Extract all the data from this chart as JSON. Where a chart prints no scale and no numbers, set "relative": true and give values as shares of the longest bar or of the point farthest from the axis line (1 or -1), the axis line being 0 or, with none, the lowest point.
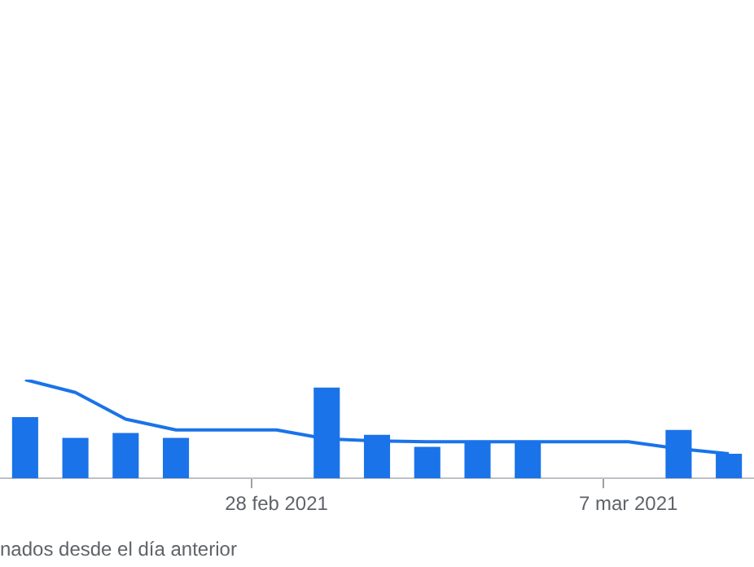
{
  "chart_data": {
    "type": "bar",
    "relative": true,
    "grid": false,
    "legend": false,
    "marker": "none",
    "categories": [
      null,
      null,
      null,
      null,
      null,
      "28 feb 2021",
      null,
      null,
      null,
      null,
      null,
      null,
      "7 mar 2021",
      null,
      null
    ],
    "series": [
      {
        "color": "#1a73e8",
        "values": [
          0.62,
          0.41,
          0.46,
          0.41,
          null,
          null,
          0.92,
          0.44,
          0.32,
          0.38,
          0.38,
          null,
          null,
          0.49,
          0.25
        ]
      },
      {
        "type": "line",
        "color": "#1a73e8",
        "values": [
          1,
          0.87,
          0.6,
          0.49,
          0.49,
          0.49,
          0.4,
          0.38,
          0.37,
          0.37,
          0.37,
          0.37,
          0.37,
          0.3,
          0.25
        ]
      }
    ],
    "annotations": [
      "nados desde el día anterior"
    ]
  }
}
